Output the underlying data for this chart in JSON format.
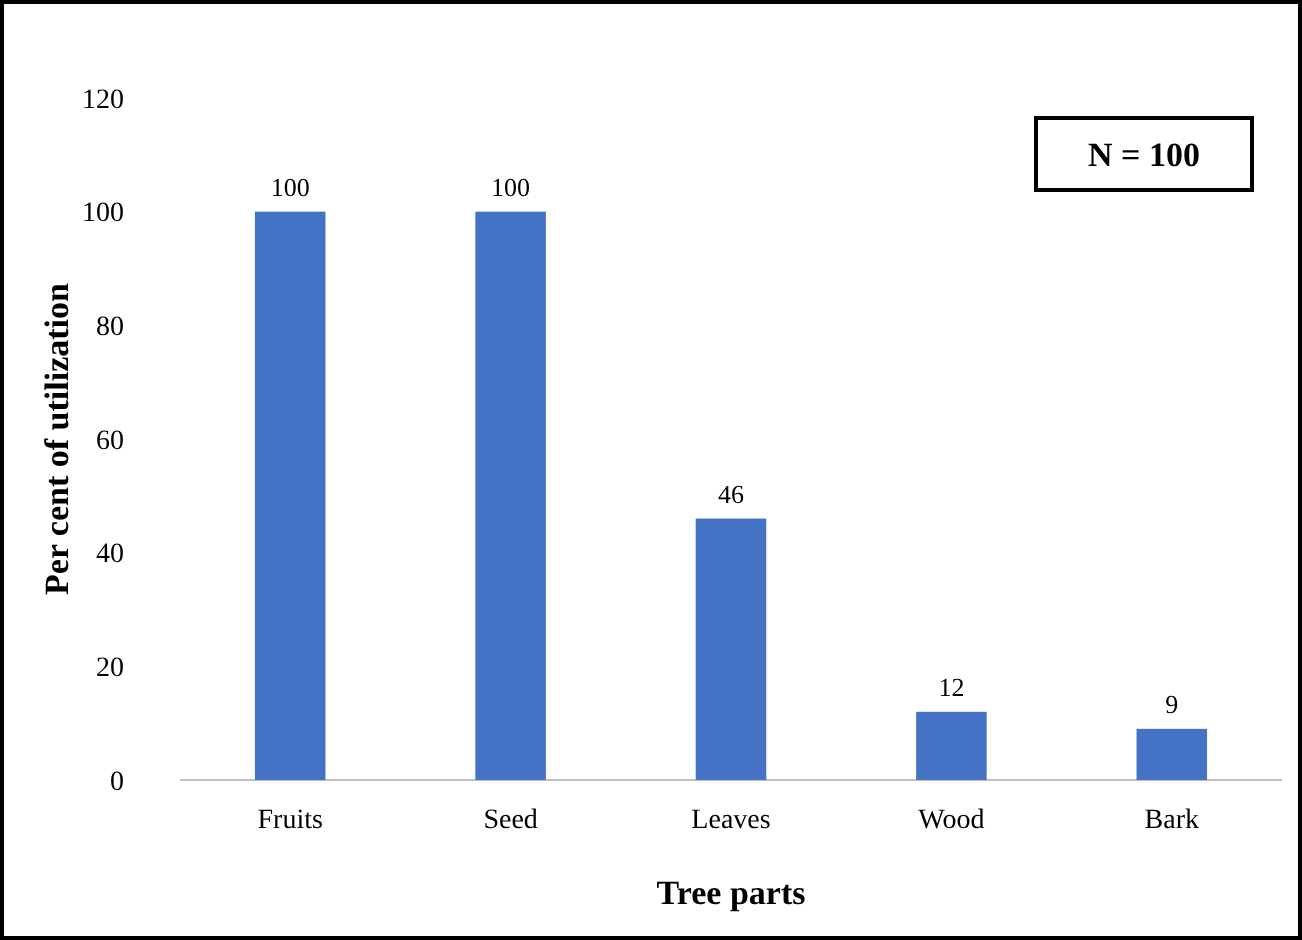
{
  "chart_data": {
    "type": "bar",
    "xlabel": "Tree parts",
    "ylabel": "Per cent of utilization",
    "categories": [
      "Fruits",
      "Seed",
      "Leaves",
      "Wood",
      "Bark"
    ],
    "values": [
      100,
      100,
      46,
      12,
      9
    ],
    "color": "#4472c4",
    "ylim": [
      0,
      120
    ],
    "yticks": [
      0,
      20,
      40,
      60,
      80,
      100,
      120
    ],
    "grid": false,
    "data_labels": true,
    "annotations": [
      "N = 100"
    ]
  }
}
